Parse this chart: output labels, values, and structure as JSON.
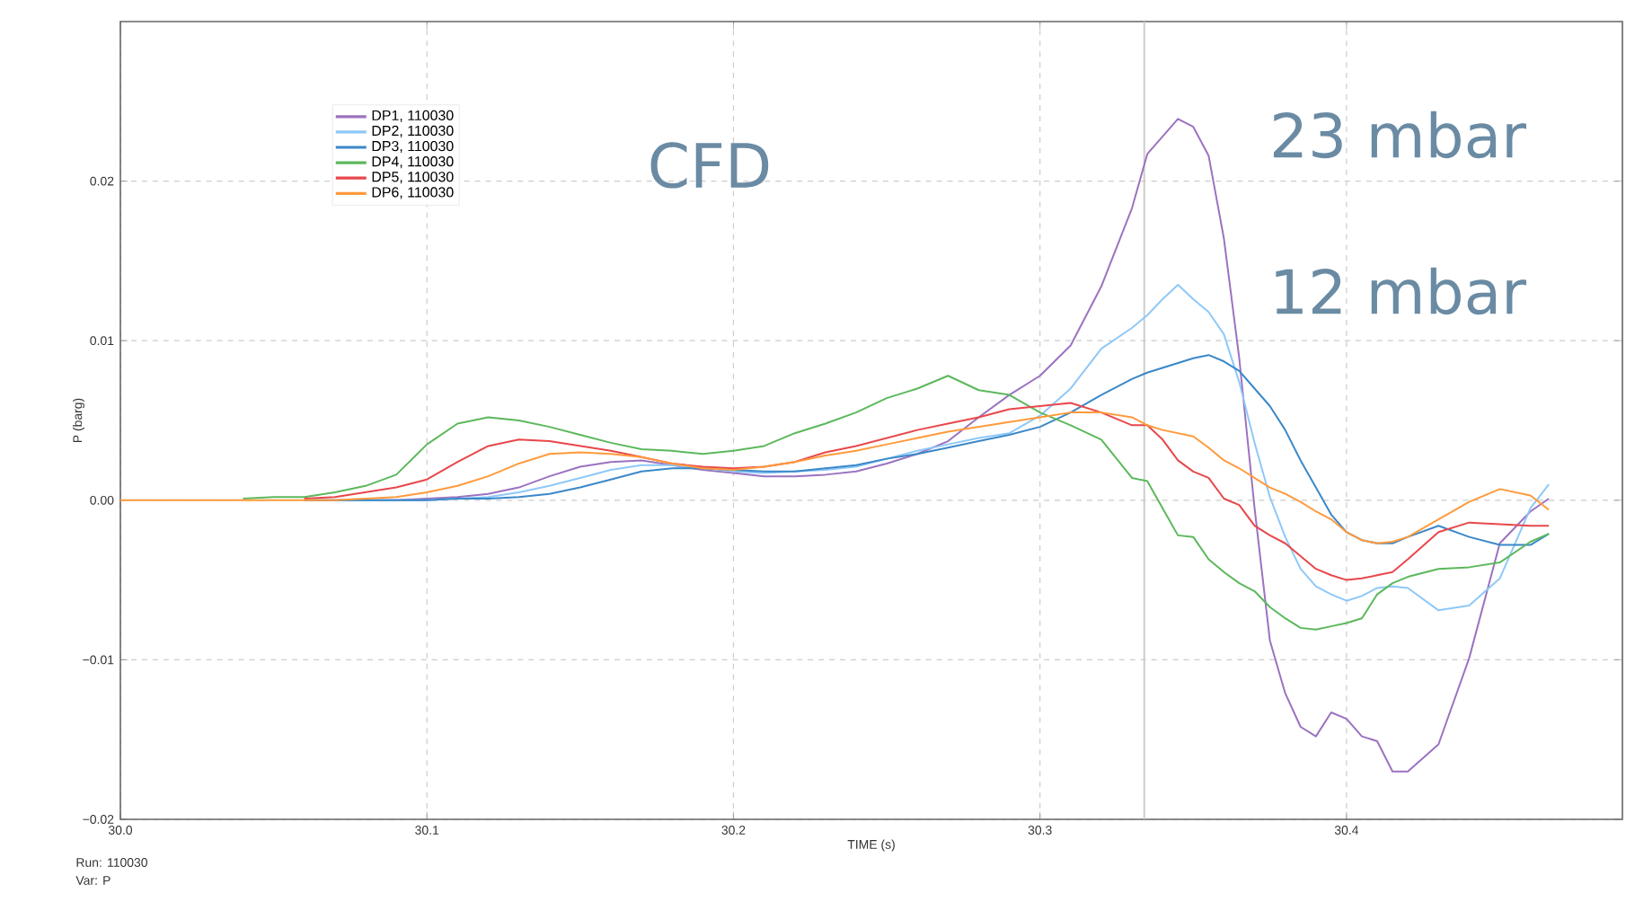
{
  "chart_data": {
    "type": "line",
    "xlabel": "TIME (s)",
    "ylabel": "P (barg)",
    "x": [
      30.0,
      30.02,
      30.04,
      30.05,
      30.06,
      30.07,
      30.08,
      30.09,
      30.1,
      30.11,
      30.12,
      30.13,
      30.14,
      30.15,
      30.16,
      30.17,
      30.18,
      30.19,
      30.2,
      30.21,
      30.22,
      30.23,
      30.24,
      30.25,
      30.26,
      30.27,
      30.28,
      30.29,
      30.3,
      30.31,
      30.32,
      30.33,
      30.335,
      30.34,
      30.345,
      30.35,
      30.355,
      30.36,
      30.365,
      30.37,
      30.375,
      30.38,
      30.385,
      30.39,
      30.395,
      30.4,
      30.405,
      30.41,
      30.415,
      30.42,
      30.43,
      30.44,
      30.45,
      30.46,
      30.466
    ],
    "series": [
      {
        "name": "DP1, 110030",
        "color": "#9b72c0",
        "values": [
          null,
          null,
          null,
          null,
          0,
          0,
          0,
          0,
          0.0001,
          0.0002,
          0.0004,
          0.0008,
          0.0015,
          0.0021,
          0.0024,
          0.0025,
          0.0022,
          0.0019,
          0.0017,
          0.0015,
          0.0015,
          0.0016,
          0.0018,
          0.0023,
          0.0029,
          0.0037,
          0.0052,
          0.0066,
          0.0078,
          0.0097,
          0.0134,
          0.0183,
          0.0217,
          0.0228,
          0.0239,
          0.0234,
          0.0216,
          0.0164,
          0.0089,
          -0.0005,
          -0.0088,
          -0.0121,
          -0.0142,
          -0.0148,
          -0.0133,
          -0.0137,
          -0.0148,
          -0.0151,
          -0.017,
          -0.017,
          -0.0153,
          -0.0099,
          -0.0027,
          -0.0007,
          0.0001
        ]
      },
      {
        "name": "DP2, 110030",
        "color": "#8ec8f8",
        "values": [
          null,
          null,
          null,
          null,
          null,
          0,
          0,
          0,
          0,
          0.0001,
          0.0002,
          0.0005,
          0.0009,
          0.0014,
          0.0019,
          0.0022,
          0.0022,
          0.002,
          0.0018,
          0.0017,
          0.0018,
          0.0019,
          0.0021,
          0.0026,
          0.0031,
          0.0035,
          0.0039,
          0.0042,
          0.0053,
          0.007,
          0.0095,
          0.0108,
          0.0116,
          0.0126,
          0.0135,
          0.0126,
          0.0118,
          0.0104,
          0.0074,
          0.0036,
          0.0002,
          -0.0023,
          -0.0043,
          -0.0054,
          -0.0059,
          -0.0063,
          -0.006,
          -0.0055,
          -0.0054,
          -0.0055,
          -0.0069,
          -0.0066,
          -0.0049,
          -0.0005,
          0.001
        ]
      },
      {
        "name": "DP3, 110030",
        "color": "#3a88c8",
        "values": [
          null,
          null,
          null,
          null,
          0,
          0,
          0,
          0,
          0,
          0.0001,
          0.0001,
          0.0002,
          0.0004,
          0.0008,
          0.0013,
          0.0018,
          0.002,
          0.002,
          0.0019,
          0.0018,
          0.0018,
          0.002,
          0.0022,
          0.0026,
          0.0029,
          0.0033,
          0.0037,
          0.0041,
          0.0046,
          0.0055,
          0.0066,
          0.0076,
          0.008,
          0.0083,
          0.0086,
          0.0089,
          0.0091,
          0.0087,
          0.0081,
          0.007,
          0.0059,
          0.0044,
          0.0025,
          0.0008,
          -0.0009,
          -0.002,
          -0.0025,
          -0.0027,
          -0.0027,
          -0.0023,
          -0.0016,
          -0.0023,
          -0.0028,
          -0.0028,
          -0.0021
        ]
      },
      {
        "name": "DP4, 110030",
        "color": "#5cb85c",
        "values": [
          null,
          null,
          0.0001,
          0.0002,
          0.0002,
          0.0005,
          0.0009,
          0.0016,
          0.0035,
          0.0048,
          0.0052,
          0.005,
          0.0046,
          0.0041,
          0.0036,
          0.0032,
          0.0031,
          0.0029,
          0.0031,
          0.0034,
          0.0042,
          0.0048,
          0.0055,
          0.0064,
          0.007,
          0.0078,
          0.0069,
          0.0066,
          0.0055,
          0.0047,
          0.0038,
          0.0014,
          0.0012,
          -0.0005,
          -0.0022,
          -0.0023,
          -0.0037,
          -0.0045,
          -0.0052,
          -0.0057,
          -0.0067,
          -0.0074,
          -0.008,
          -0.0081,
          -0.0079,
          -0.0077,
          -0.0074,
          -0.0059,
          -0.0052,
          -0.0048,
          -0.0043,
          -0.0042,
          -0.0039,
          -0.0026,
          -0.0021
        ]
      },
      {
        "name": "DP5, 110030",
        "color": "#e8474b",
        "values": [
          null,
          null,
          null,
          null,
          0.0001,
          0.0002,
          0.0005,
          0.0008,
          0.0013,
          0.0024,
          0.0034,
          0.0038,
          0.0037,
          0.0034,
          0.0031,
          0.0027,
          0.0023,
          0.0021,
          0.002,
          0.0021,
          0.0024,
          0.003,
          0.0034,
          0.0039,
          0.0044,
          0.0048,
          0.0052,
          0.0057,
          0.0059,
          0.0061,
          0.0055,
          0.0047,
          0.0047,
          0.0038,
          0.0025,
          0.0018,
          0.0014,
          0.0001,
          -0.0003,
          -0.0016,
          -0.0022,
          -0.0027,
          -0.0035,
          -0.0043,
          -0.0047,
          -0.005,
          -0.0049,
          -0.0047,
          -0.0045,
          -0.0037,
          -0.002,
          -0.0014,
          -0.0015,
          -0.0016,
          -0.0016
        ]
      },
      {
        "name": "DP6, 110030",
        "color": "#ff9a3c",
        "values": [
          0,
          0,
          0,
          0,
          0,
          0,
          0.0001,
          0.0002,
          0.0005,
          0.0009,
          0.0015,
          0.0023,
          0.0029,
          0.003,
          0.0029,
          0.0027,
          0.0023,
          0.002,
          0.0019,
          0.0021,
          0.0024,
          0.0028,
          0.0031,
          0.0035,
          0.0039,
          0.0043,
          0.0046,
          0.0049,
          0.0052,
          0.0055,
          0.0055,
          0.0052,
          0.0047,
          0.0044,
          0.0042,
          0.004,
          0.0033,
          0.0025,
          0.002,
          0.0014,
          0.0008,
          0.0004,
          -0.0001,
          -0.0007,
          -0.0012,
          -0.002,
          -0.0025,
          -0.0027,
          -0.0026,
          -0.0023,
          -0.0012,
          -0.0001,
          0.0007,
          0.0003,
          -0.0006
        ]
      }
    ],
    "xlim": [
      30.0,
      30.49
    ],
    "ylim": [
      -0.02,
      0.03
    ],
    "xticks": [
      {
        "value": 30.0,
        "label": "30.0"
      },
      {
        "value": 30.1,
        "label": "30.1"
      },
      {
        "value": 30.2,
        "label": "30.2"
      },
      {
        "value": 30.3,
        "label": "30.3"
      },
      {
        "value": 30.4,
        "label": "30.4"
      }
    ],
    "yticks": [
      {
        "value": -0.02,
        "label": "−0.02"
      },
      {
        "value": -0.01,
        "label": "−0.01"
      },
      {
        "value": 0,
        "label": "0.00"
      },
      {
        "value": 0.01,
        "label": "0.01"
      },
      {
        "value": 0.02,
        "label": "0.02"
      }
    ],
    "ref_lines": [
      {
        "axis": "x",
        "value": 30.334,
        "color": "#c8c8c8"
      }
    ],
    "annotations": [
      "CFD",
      "23 mbar",
      "12 mbar",
      "Run: 110030",
      "Var: P"
    ],
    "grid": true,
    "legend": "top left",
    "marker": "none",
    "line_style": "solid"
  }
}
